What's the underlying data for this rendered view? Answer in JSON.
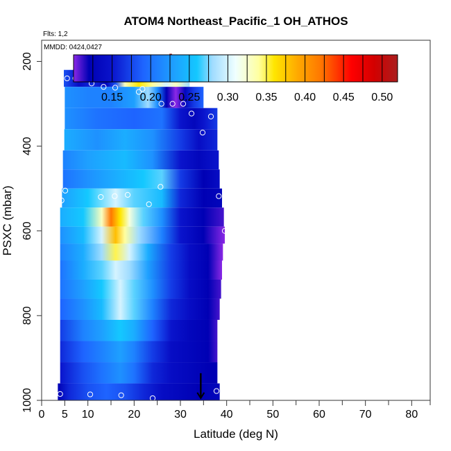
{
  "chart_data": {
    "type": "heatmap",
    "title": "ATOM4 Northeast_Pacific_1 OH_ATHOS",
    "subtitle_flights": "Flts: 1,2",
    "subtitle_dates": "MMDD: 0424,0427",
    "xlabel": "Latitude (deg N)",
    "ylabel": "PSXC (mbar)",
    "xlim": [
      0,
      84
    ],
    "ylim": [
      1000,
      150
    ],
    "y_reversed": true,
    "x_major_ticks": [
      0,
      5,
      10,
      20,
      30,
      40,
      50,
      60,
      70,
      80
    ],
    "x_minor_ticks": [
      15,
      25,
      35,
      45,
      55,
      65,
      75,
      84
    ],
    "y_ticks": [
      200,
      400,
      600,
      800,
      1000
    ],
    "colorbar": {
      "ticks": [
        0.15,
        0.2,
        0.25,
        0.3,
        0.35,
        0.4,
        0.45,
        0.5
      ],
      "tick_labels": [
        "0.15",
        "0.20",
        "0.25",
        "0.30",
        "0.35",
        "0.40",
        "0.45",
        "0.50"
      ],
      "range": [
        0.1,
        0.52
      ],
      "stops": [
        {
          "v": 0.1,
          "c": "#8b28e6"
        },
        {
          "v": 0.12,
          "c": "#0000b4"
        },
        {
          "v": 0.15,
          "c": "#0a14cc"
        },
        {
          "v": 0.19,
          "c": "#1e64ff"
        },
        {
          "v": 0.23,
          "c": "#1ea0ff"
        },
        {
          "v": 0.26,
          "c": "#14c8ff"
        },
        {
          "v": 0.28,
          "c": "#a0dcff"
        },
        {
          "v": 0.31,
          "c": "#f0ffff"
        },
        {
          "v": 0.34,
          "c": "#ffffa0"
        },
        {
          "v": 0.36,
          "c": "#ffe600"
        },
        {
          "v": 0.39,
          "c": "#ffaa00"
        },
        {
          "v": 0.42,
          "c": "#ff7800"
        },
        {
          "v": 0.46,
          "c": "#ff0000"
        },
        {
          "v": 0.49,
          "c": "#d20000"
        },
        {
          "v": 0.52,
          "c": "#aa1e1e"
        }
      ]
    },
    "layers": [
      {
        "p_top": 220,
        "p_bot": 260,
        "x0": 4.8,
        "x1": 32.0,
        "row": [
          {
            "x": 4.8,
            "v": 0.18
          },
          {
            "x": 8,
            "v": 0.14
          },
          {
            "x": 11,
            "v": 0.16
          },
          {
            "x": 14,
            "v": 0.13
          },
          {
            "x": 16,
            "v": 0.18
          },
          {
            "x": 18,
            "v": 0.33
          },
          {
            "x": 21,
            "v": 0.36
          },
          {
            "x": 24,
            "v": 0.34
          },
          {
            "x": 27,
            "v": 0.3
          },
          {
            "x": 29,
            "v": 0.33
          },
          {
            "x": 32,
            "v": 0.28
          }
        ]
      },
      {
        "p_top": 260,
        "p_bot": 310,
        "x0": 5.0,
        "x1": 35.0,
        "row": [
          {
            "x": 5,
            "v": 0.22
          },
          {
            "x": 10,
            "v": 0.21
          },
          {
            "x": 15,
            "v": 0.21
          },
          {
            "x": 20,
            "v": 0.23
          },
          {
            "x": 23,
            "v": 0.28
          },
          {
            "x": 25,
            "v": 0.22
          },
          {
            "x": 27,
            "v": 0.12
          },
          {
            "x": 29,
            "v": 0.1
          },
          {
            "x": 31,
            "v": 0.13
          },
          {
            "x": 33,
            "v": 0.17
          },
          {
            "x": 35,
            "v": 0.19
          }
        ]
      },
      {
        "p_top": 310,
        "p_bot": 360,
        "x0": 5.0,
        "x1": 38.0,
        "row": [
          {
            "x": 5,
            "v": 0.22
          },
          {
            "x": 12,
            "v": 0.2
          },
          {
            "x": 20,
            "v": 0.19
          },
          {
            "x": 26,
            "v": 0.2
          },
          {
            "x": 30,
            "v": 0.15
          },
          {
            "x": 33,
            "v": 0.13
          },
          {
            "x": 35,
            "v": 0.15
          },
          {
            "x": 38,
            "v": 0.17
          }
        ]
      },
      {
        "p_top": 360,
        "p_bot": 410,
        "x0": 4.9,
        "x1": 38.0,
        "row": [
          {
            "x": 4.9,
            "v": 0.24
          },
          {
            "x": 12,
            "v": 0.22
          },
          {
            "x": 18,
            "v": 0.24
          },
          {
            "x": 24,
            "v": 0.22
          },
          {
            "x": 30,
            "v": 0.17
          },
          {
            "x": 34,
            "v": 0.14
          },
          {
            "x": 38,
            "v": 0.16
          }
        ]
      },
      {
        "p_top": 410,
        "p_bot": 455,
        "x0": 4.6,
        "x1": 38.3,
        "row": [
          {
            "x": 4.6,
            "v": 0.21
          },
          {
            "x": 10,
            "v": 0.23
          },
          {
            "x": 18,
            "v": 0.25
          },
          {
            "x": 24,
            "v": 0.22
          },
          {
            "x": 30,
            "v": 0.15
          },
          {
            "x": 34,
            "v": 0.13
          },
          {
            "x": 38.3,
            "v": 0.15
          }
        ]
      },
      {
        "p_top": 455,
        "p_bot": 500,
        "x0": 4.6,
        "x1": 38.5,
        "row": [
          {
            "x": 4.6,
            "v": 0.2
          },
          {
            "x": 10,
            "v": 0.22
          },
          {
            "x": 16,
            "v": 0.24
          },
          {
            "x": 22,
            "v": 0.26
          },
          {
            "x": 26,
            "v": 0.27
          },
          {
            "x": 30,
            "v": 0.17
          },
          {
            "x": 35,
            "v": 0.12
          },
          {
            "x": 38.5,
            "v": 0.14
          }
        ]
      },
      {
        "p_top": 500,
        "p_bot": 545,
        "x0": 4.4,
        "x1": 39.0,
        "row": [
          {
            "x": 4.4,
            "v": 0.23
          },
          {
            "x": 10,
            "v": 0.26
          },
          {
            "x": 16,
            "v": 0.3
          },
          {
            "x": 20,
            "v": 0.27
          },
          {
            "x": 26,
            "v": 0.25
          },
          {
            "x": 30,
            "v": 0.16
          },
          {
            "x": 35,
            "v": 0.12
          },
          {
            "x": 39,
            "v": 0.13
          }
        ]
      },
      {
        "p_top": 545,
        "p_bot": 590,
        "x0": 4.0,
        "x1": 39.4,
        "row": [
          {
            "x": 4,
            "v": 0.24
          },
          {
            "x": 9,
            "v": 0.26
          },
          {
            "x": 13,
            "v": 0.33
          },
          {
            "x": 15,
            "v": 0.42
          },
          {
            "x": 17,
            "v": 0.36
          },
          {
            "x": 19,
            "v": 0.32
          },
          {
            "x": 22,
            "v": 0.27
          },
          {
            "x": 26,
            "v": 0.22
          },
          {
            "x": 30,
            "v": 0.15
          },
          {
            "x": 35,
            "v": 0.12
          },
          {
            "x": 39.4,
            "v": 0.11
          }
        ]
      },
      {
        "p_top": 590,
        "p_bot": 630,
        "x0": 4.0,
        "x1": 39.6,
        "row": [
          {
            "x": 4,
            "v": 0.22
          },
          {
            "x": 9,
            "v": 0.25
          },
          {
            "x": 13,
            "v": 0.3
          },
          {
            "x": 16,
            "v": 0.38
          },
          {
            "x": 18,
            "v": 0.34
          },
          {
            "x": 21,
            "v": 0.28
          },
          {
            "x": 26,
            "v": 0.21
          },
          {
            "x": 30,
            "v": 0.15
          },
          {
            "x": 35,
            "v": 0.12
          },
          {
            "x": 39.6,
            "v": 0.1
          }
        ]
      },
      {
        "p_top": 630,
        "p_bot": 670,
        "x0": 4.0,
        "x1": 39.2,
        "row": [
          {
            "x": 4,
            "v": 0.21
          },
          {
            "x": 9,
            "v": 0.24
          },
          {
            "x": 13,
            "v": 0.28
          },
          {
            "x": 16,
            "v": 0.35
          },
          {
            "x": 19,
            "v": 0.3
          },
          {
            "x": 23,
            "v": 0.24
          },
          {
            "x": 28,
            "v": 0.17
          },
          {
            "x": 32,
            "v": 0.14
          },
          {
            "x": 36,
            "v": 0.12
          },
          {
            "x": 39.2,
            "v": 0.1
          }
        ]
      },
      {
        "p_top": 670,
        "p_bot": 715,
        "x0": 4.0,
        "x1": 39.0,
        "row": [
          {
            "x": 4,
            "v": 0.2
          },
          {
            "x": 9,
            "v": 0.24
          },
          {
            "x": 13,
            "v": 0.27
          },
          {
            "x": 16,
            "v": 0.3
          },
          {
            "x": 19,
            "v": 0.28
          },
          {
            "x": 23,
            "v": 0.23
          },
          {
            "x": 28,
            "v": 0.17
          },
          {
            "x": 32,
            "v": 0.14
          },
          {
            "x": 36,
            "v": 0.12
          },
          {
            "x": 39,
            "v": 0.1
          }
        ]
      },
      {
        "p_top": 715,
        "p_bot": 760,
        "x0": 4.0,
        "x1": 38.8,
        "row": [
          {
            "x": 4,
            "v": 0.2
          },
          {
            "x": 9,
            "v": 0.23
          },
          {
            "x": 13,
            "v": 0.26
          },
          {
            "x": 17,
            "v": 0.3
          },
          {
            "x": 20,
            "v": 0.27
          },
          {
            "x": 24,
            "v": 0.22
          },
          {
            "x": 28,
            "v": 0.17
          },
          {
            "x": 32,
            "v": 0.14
          },
          {
            "x": 36,
            "v": 0.12
          },
          {
            "x": 38.8,
            "v": 0.11
          }
        ]
      },
      {
        "p_top": 760,
        "p_bot": 810,
        "x0": 4.0,
        "x1": 38.5,
        "row": [
          {
            "x": 4,
            "v": 0.19
          },
          {
            "x": 9,
            "v": 0.22
          },
          {
            "x": 13,
            "v": 0.25
          },
          {
            "x": 17,
            "v": 0.3
          },
          {
            "x": 20,
            "v": 0.27
          },
          {
            "x": 24,
            "v": 0.21
          },
          {
            "x": 28,
            "v": 0.16
          },
          {
            "x": 32,
            "v": 0.14
          },
          {
            "x": 36,
            "v": 0.12
          },
          {
            "x": 38.5,
            "v": 0.11
          }
        ]
      },
      {
        "p_top": 810,
        "p_bot": 860,
        "x0": 4.0,
        "x1": 38.0,
        "row": [
          {
            "x": 4,
            "v": 0.17
          },
          {
            "x": 9,
            "v": 0.21
          },
          {
            "x": 13,
            "v": 0.23
          },
          {
            "x": 17,
            "v": 0.26
          },
          {
            "x": 20,
            "v": 0.24
          },
          {
            "x": 24,
            "v": 0.19
          },
          {
            "x": 28,
            "v": 0.15
          },
          {
            "x": 32,
            "v": 0.13
          },
          {
            "x": 36,
            "v": 0.12
          },
          {
            "x": 38,
            "v": 0.11
          }
        ]
      },
      {
        "p_top": 860,
        "p_bot": 910,
        "x0": 4.0,
        "x1": 38.0,
        "row": [
          {
            "x": 4,
            "v": 0.16
          },
          {
            "x": 9,
            "v": 0.19
          },
          {
            "x": 13,
            "v": 0.21
          },
          {
            "x": 17,
            "v": 0.23
          },
          {
            "x": 20,
            "v": 0.21
          },
          {
            "x": 24,
            "v": 0.17
          },
          {
            "x": 28,
            "v": 0.14
          },
          {
            "x": 32,
            "v": 0.13
          },
          {
            "x": 36,
            "v": 0.12
          },
          {
            "x": 38,
            "v": 0.11
          }
        ]
      },
      {
        "p_top": 910,
        "p_bot": 960,
        "x0": 4.0,
        "x1": 38.0,
        "row": [
          {
            "x": 4,
            "v": 0.15
          },
          {
            "x": 9,
            "v": 0.18
          },
          {
            "x": 13,
            "v": 0.2
          },
          {
            "x": 17,
            "v": 0.22
          },
          {
            "x": 20,
            "v": 0.2
          },
          {
            "x": 24,
            "v": 0.16
          },
          {
            "x": 28,
            "v": 0.14
          },
          {
            "x": 32,
            "v": 0.13
          },
          {
            "x": 36,
            "v": 0.12
          },
          {
            "x": 38,
            "v": 0.12
          }
        ]
      },
      {
        "p_top": 960,
        "p_bot": 1000,
        "x0": 3.5,
        "x1": 38.5,
        "row": [
          {
            "x": 3.5,
            "v": 0.12
          },
          {
            "x": 6,
            "v": 0.16
          },
          {
            "x": 10,
            "v": 0.18
          },
          {
            "x": 14,
            "v": 0.19
          },
          {
            "x": 18,
            "v": 0.18
          },
          {
            "x": 22,
            "v": 0.16
          },
          {
            "x": 26,
            "v": 0.14
          },
          {
            "x": 30,
            "v": 0.13
          },
          {
            "x": 34,
            "v": 0.12
          },
          {
            "x": 38.5,
            "v": 0.13
          }
        ]
      }
    ],
    "sample_points": [
      {
        "x": 5.5,
        "p": 240
      },
      {
        "x": 7.3,
        "p": 240
      },
      {
        "x": 8.2,
        "p": 238
      },
      {
        "x": 10.8,
        "p": 252
      },
      {
        "x": 13.4,
        "p": 260
      },
      {
        "x": 14.3,
        "p": 242
      },
      {
        "x": 15.9,
        "p": 262
      },
      {
        "x": 21.0,
        "p": 272
      },
      {
        "x": 21.8,
        "p": 265
      },
      {
        "x": 25.9,
        "p": 300
      },
      {
        "x": 28.3,
        "p": 300
      },
      {
        "x": 30.6,
        "p": 300
      },
      {
        "x": 32.4,
        "p": 323
      },
      {
        "x": 34.8,
        "p": 368
      },
      {
        "x": 36.6,
        "p": 330
      },
      {
        "x": 38.7,
        "p": 330
      },
      {
        "x": 4.3,
        "p": 528
      },
      {
        "x": 5.1,
        "p": 505
      },
      {
        "x": 12.8,
        "p": 520
      },
      {
        "x": 15.8,
        "p": 518
      },
      {
        "x": 18.6,
        "p": 515
      },
      {
        "x": 23.2,
        "p": 537
      },
      {
        "x": 25.7,
        "p": 496
      },
      {
        "x": 38.3,
        "p": 518
      },
      {
        "x": 39.6,
        "p": 600
      },
      {
        "x": 4.0,
        "p": 985
      },
      {
        "x": 10.5,
        "p": 986
      },
      {
        "x": 17.2,
        "p": 988
      },
      {
        "x": 24.0,
        "p": 995
      },
      {
        "x": 37.8,
        "p": 978
      }
    ],
    "markers": [
      {
        "kind": "marker-top",
        "x": 27.9,
        "p": 195,
        "color": "#9b1b1b"
      },
      {
        "kind": "marker-bottom",
        "x": 34.4,
        "p": 985,
        "color": "#000000"
      }
    ]
  }
}
